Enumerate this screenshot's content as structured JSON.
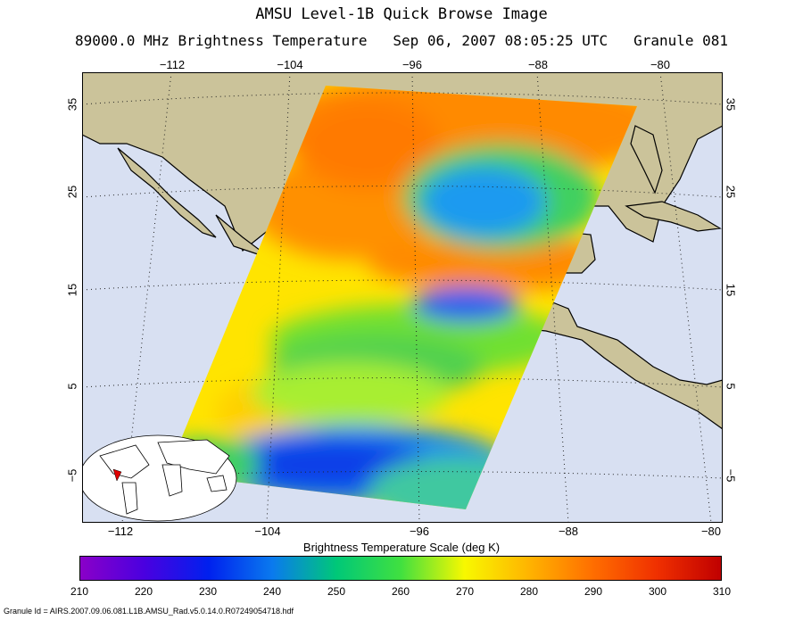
{
  "title": "AMSU Level-1B Quick Browse Image",
  "subtitle": "89000.0 MHz Brightness Temperature   Sep 06, 2007 08:05:25 UTC   Granule 081",
  "map": {
    "lon_ticks": [
      "−112",
      "−104",
      "−96",
      "−88",
      "−80"
    ],
    "lat_ticks": [
      "35",
      "25",
      "15",
      "5",
      "−5"
    ],
    "colors": {
      "land": "#cbc39a",
      "ocean": "#d8e0f2",
      "coast": "#000000"
    }
  },
  "scale": {
    "title": "Brightness Temperature Scale (deg K)",
    "ticks": [
      "210",
      "220",
      "230",
      "240",
      "250",
      "260",
      "270",
      "280",
      "290",
      "300",
      "310"
    ],
    "colors": [
      "#8a00c8",
      "#4a00e0",
      "#0020ee",
      "#0a7aee",
      "#00c878",
      "#40e040",
      "#f8f800",
      "#ffb400",
      "#ff6e00",
      "#f03000",
      "#c00000"
    ]
  },
  "footer": "Granule Id = AIRS.2007.09.06.081.L1B.AMSU_Rad.v5.0.14.0.R07249054718.hdf"
}
